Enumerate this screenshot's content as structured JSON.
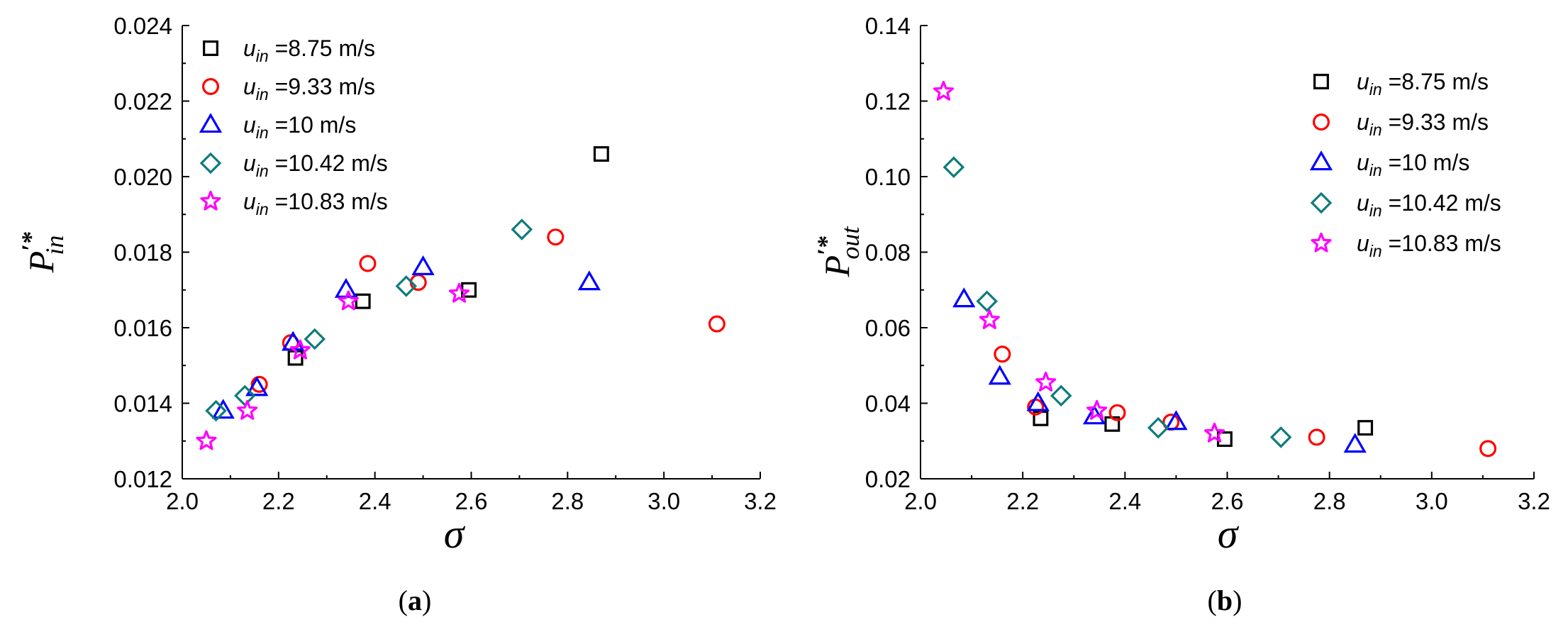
{
  "chart_data": [
    {
      "type": "scatter",
      "panel_label": "a",
      "xlabel": "σ",
      "ylabel": {
        "base": "P",
        "prime_star": "′*",
        "sub": "in"
      },
      "xlim": [
        2.0,
        3.2
      ],
      "ylim": [
        0.012,
        0.024
      ],
      "xticks": [
        "2.0",
        "2.2",
        "2.4",
        "2.6",
        "2.8",
        "3.0",
        "3.2"
      ],
      "yticks": [
        "0.012",
        "0.014",
        "0.016",
        "0.018",
        "0.020",
        "0.022",
        "0.024"
      ],
      "grid": false,
      "legend_position": "top-left",
      "series": [
        {
          "name": "8.75 m/s",
          "symbol": "square",
          "color": "#000000",
          "x": [
            2.235,
            2.375,
            2.595,
            2.87
          ],
          "y": [
            0.0152,
            0.0167,
            0.017,
            0.0206
          ]
        },
        {
          "name": "9.33 m/s",
          "symbol": "circle",
          "color": "#ff0000",
          "x": [
            2.16,
            2.225,
            2.385,
            2.49,
            2.775,
            3.11
          ],
          "y": [
            0.0145,
            0.0156,
            0.0177,
            0.0172,
            0.0184,
            0.0161
          ]
        },
        {
          "name": "10 m/s",
          "symbol": "triangle",
          "color": "#0000ff",
          "x": [
            2.085,
            2.155,
            2.23,
            2.34,
            2.5,
            2.845
          ],
          "y": [
            0.0138,
            0.0144,
            0.0156,
            0.017,
            0.0176,
            0.0172
          ]
        },
        {
          "name": "10.42 m/s",
          "symbol": "diamond",
          "color": "#0e7c7b",
          "x": [
            2.07,
            2.13,
            2.275,
            2.465,
            2.705
          ],
          "y": [
            0.0138,
            0.0142,
            0.0157,
            0.0171,
            0.0186
          ]
        },
        {
          "name": "10.83 m/s",
          "symbol": "star",
          "color": "#ff00ff",
          "x": [
            2.05,
            2.135,
            2.245,
            2.345,
            2.575
          ],
          "y": [
            0.013,
            0.0138,
            0.0154,
            0.0167,
            0.0169
          ]
        }
      ]
    },
    {
      "type": "scatter",
      "panel_label": "b",
      "xlabel": "σ",
      "ylabel": {
        "base": "P",
        "prime_star": "′*",
        "sub": "out"
      },
      "xlim": [
        2.0,
        3.2
      ],
      "ylim": [
        0.02,
        0.14
      ],
      "xticks": [
        "2.0",
        "2.2",
        "2.4",
        "2.6",
        "2.8",
        "3.0",
        "3.2"
      ],
      "yticks": [
        "0.02",
        "0.04",
        "0.06",
        "0.08",
        "0.10",
        "0.12",
        "0.14"
      ],
      "grid": false,
      "legend_position": "top-right",
      "series": [
        {
          "name": "8.75 m/s",
          "symbol": "square",
          "color": "#000000",
          "x": [
            2.235,
            2.375,
            2.595,
            2.87
          ],
          "y": [
            0.036,
            0.0345,
            0.0305,
            0.0335
          ]
        },
        {
          "name": "9.33 m/s",
          "symbol": "circle",
          "color": "#ff0000",
          "x": [
            2.16,
            2.225,
            2.385,
            2.49,
            2.775,
            3.11
          ],
          "y": [
            0.053,
            0.039,
            0.0375,
            0.035,
            0.031,
            0.028
          ]
        },
        {
          "name": "10 m/s",
          "symbol": "triangle",
          "color": "#0000ff",
          "x": [
            2.085,
            2.155,
            2.23,
            2.34,
            2.5,
            2.85
          ],
          "y": [
            0.0675,
            0.047,
            0.04,
            0.0365,
            0.035,
            0.029
          ]
        },
        {
          "name": "10.42 m/s",
          "symbol": "diamond",
          "color": "#0e7c7b",
          "x": [
            2.065,
            2.13,
            2.275,
            2.465,
            2.705
          ],
          "y": [
            0.1025,
            0.067,
            0.042,
            0.0335,
            0.031
          ]
        },
        {
          "name": "10.83 m/s",
          "symbol": "star",
          "color": "#ff00ff",
          "x": [
            2.045,
            2.135,
            2.245,
            2.345,
            2.575
          ],
          "y": [
            0.1225,
            0.062,
            0.0455,
            0.038,
            0.032
          ]
        }
      ]
    }
  ],
  "legend_prefix": {
    "base": "u",
    "sub": "in",
    "eq": " ="
  }
}
